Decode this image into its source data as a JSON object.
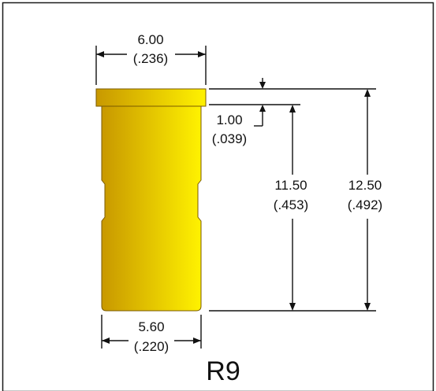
{
  "part": {
    "label": "R9",
    "body_color_light": "#FFF200",
    "body_color_dark": "#C89800",
    "outline_color": "#7A5A00"
  },
  "dimensions": {
    "top_width": {
      "mm": "6.00",
      "in": "(.236)"
    },
    "flange_height": {
      "mm": "1.00",
      "in": "(.039)"
    },
    "body_length": {
      "mm": "11.50",
      "in": "(.453)"
    },
    "overall_length": {
      "mm": "12.50",
      "in": "(.492)"
    },
    "body_width": {
      "mm": "5.60",
      "in": "(.220)"
    }
  }
}
